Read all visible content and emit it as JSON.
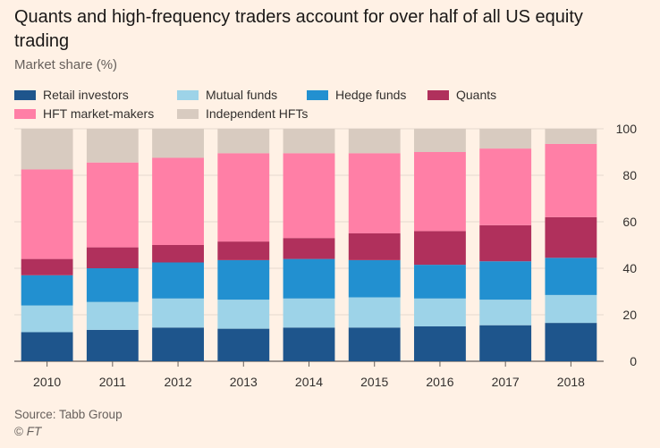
{
  "chart_data": {
    "type": "bar",
    "stacked": true,
    "title": "Quants and high-frequency traders account for over half of all US equity trading",
    "subtitle": "Market share (%)",
    "categories": [
      "2010",
      "2011",
      "2012",
      "2013",
      "2014",
      "2015",
      "2016",
      "2017",
      "2018"
    ],
    "ylim": [
      0,
      100
    ],
    "yticks": [
      0,
      20,
      40,
      60,
      80,
      100
    ],
    "y_axis_side": "right",
    "grid": true,
    "legend_position": "top-left",
    "series": [
      {
        "name": "Retail investors",
        "color": "#1e558c",
        "values": [
          12.5,
          13.5,
          14.5,
          14,
          14.5,
          14.5,
          15,
          15.5,
          16.5
        ]
      },
      {
        "name": "Mutual funds",
        "color": "#9dd3e8",
        "values": [
          11.5,
          12,
          12.5,
          12.5,
          12.5,
          13,
          12,
          11,
          12
        ]
      },
      {
        "name": "Hedge funds",
        "color": "#2290d0",
        "values": [
          13,
          14.5,
          15.5,
          17,
          17,
          16,
          14.5,
          16.5,
          16
        ]
      },
      {
        "name": "Quants",
        "color": "#b0305c",
        "values": [
          7,
          9,
          7.5,
          8,
          9,
          11.5,
          14.5,
          15.5,
          17.5
        ]
      },
      {
        "name": "HFT market-makers",
        "color": "#ff7fa6",
        "values": [
          38.5,
          36.5,
          37.5,
          38,
          36.5,
          34.5,
          34,
          33,
          31.5
        ]
      },
      {
        "name": "Independent HFTs",
        "color": "#d8cbc0",
        "values": [
          17.5,
          14.5,
          12.5,
          10.5,
          10.5,
          10.5,
          10,
          8.5,
          6.5
        ]
      }
    ]
  },
  "source": "Source: Tabb Group",
  "credit_symbol": "©",
  "credit_text": "FT"
}
